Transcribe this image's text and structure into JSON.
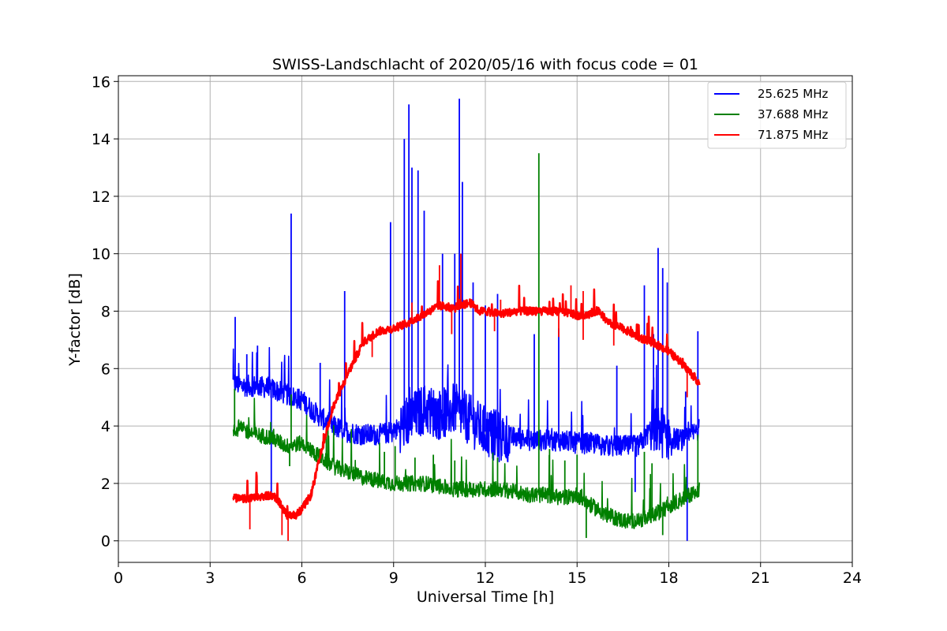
{
  "chart_data": {
    "type": "line",
    "title": "SWISS-Landschlacht of 2020/05/16 with focus code = 01",
    "xlabel": "Universal Time [h]",
    "ylabel": "Y-factor [dB]",
    "xlim": [
      0,
      24
    ],
    "ylim": [
      -0.75,
      16.2
    ],
    "xticks": [
      0,
      3,
      6,
      9,
      12,
      15,
      18,
      21,
      24
    ],
    "yticks": [
      0,
      2,
      4,
      6,
      8,
      10,
      12,
      14,
      16
    ],
    "grid": true,
    "legend_position": "top-right",
    "series": [
      {
        "name": "25.625 MHz",
        "color": "#0000ff",
        "x": [
          3.75,
          4.0,
          4.5,
          5.0,
          5.5,
          6.0,
          6.5,
          7.0,
          7.5,
          8.0,
          8.5,
          9.0,
          9.5,
          10.0,
          10.5,
          11.0,
          11.5,
          12.0,
          12.5,
          13.0,
          13.5,
          14.0,
          14.5,
          15.0,
          15.5,
          16.0,
          16.5,
          17.0,
          17.5,
          18.0,
          18.5,
          19.0
        ],
        "y": [
          5.5,
          5.4,
          5.4,
          5.3,
          5.1,
          4.9,
          4.4,
          4.0,
          3.8,
          3.7,
          3.7,
          3.8,
          4.2,
          4.6,
          4.4,
          4.6,
          4.2,
          3.8,
          3.6,
          3.6,
          3.5,
          3.5,
          3.5,
          3.4,
          3.4,
          3.3,
          3.3,
          3.3,
          4.0,
          3.6,
          3.5,
          3.9
        ],
        "spikes": [
          [
            3.82,
            7.8
          ],
          [
            4.2,
            6.5
          ],
          [
            4.55,
            6.8
          ],
          [
            5.65,
            11.4
          ],
          [
            6.6,
            6.2
          ],
          [
            7.4,
            8.7
          ],
          [
            8.9,
            11.1
          ],
          [
            9.35,
            14.0
          ],
          [
            9.5,
            15.2
          ],
          [
            9.6,
            13.0
          ],
          [
            9.8,
            12.9
          ],
          [
            10.0,
            11.5
          ],
          [
            10.6,
            10.0
          ],
          [
            11.0,
            10.0
          ],
          [
            11.15,
            15.4
          ],
          [
            11.25,
            12.5
          ],
          [
            11.6,
            9.0
          ],
          [
            12.0,
            8.2
          ],
          [
            12.4,
            8.6
          ],
          [
            13.6,
            7.2
          ],
          [
            14.4,
            7.4
          ],
          [
            16.3,
            6.1
          ],
          [
            17.2,
            8.9
          ],
          [
            17.5,
            7.2
          ],
          [
            17.65,
            10.2
          ],
          [
            17.8,
            9.5
          ],
          [
            17.95,
            9.0
          ],
          [
            18.55,
            5.2
          ],
          [
            18.95,
            7.3
          ]
        ],
        "dips": [
          [
            5.0,
            1.6
          ],
          [
            16.9,
            1.7
          ],
          [
            18.6,
            0.0
          ]
        ]
      },
      {
        "name": "37.688 MHz",
        "color": "#008000",
        "x": [
          3.75,
          4.0,
          4.5,
          5.0,
          5.5,
          6.0,
          6.5,
          7.0,
          7.5,
          8.0,
          8.5,
          9.0,
          9.5,
          10.0,
          10.5,
          11.0,
          11.5,
          12.0,
          12.5,
          13.0,
          13.5,
          14.0,
          14.5,
          15.0,
          15.5,
          16.0,
          16.5,
          17.0,
          17.5,
          18.0,
          18.5,
          19.0
        ],
        "y": [
          3.9,
          3.9,
          3.7,
          3.6,
          3.3,
          3.4,
          3.0,
          2.6,
          2.4,
          2.2,
          2.1,
          2.0,
          2.0,
          2.0,
          1.9,
          1.8,
          1.8,
          1.8,
          1.8,
          1.7,
          1.6,
          1.6,
          1.5,
          1.6,
          1.2,
          0.9,
          0.7,
          0.7,
          0.9,
          1.2,
          1.5,
          1.8
        ],
        "spikes": [
          [
            3.8,
            5.3
          ],
          [
            5.65,
            5.1
          ],
          [
            6.8,
            3.9
          ],
          [
            8.7,
            3.1
          ],
          [
            9.05,
            3.3
          ],
          [
            9.7,
            2.9
          ],
          [
            10.3,
            3.0
          ],
          [
            11.0,
            2.8
          ],
          [
            12.4,
            2.9
          ],
          [
            13.75,
            13.5
          ],
          [
            14.1,
            3.2
          ],
          [
            14.6,
            2.8
          ],
          [
            15.0,
            3.0
          ],
          [
            17.2,
            3.1
          ],
          [
            17.45,
            2.7
          ],
          [
            18.95,
            3.7
          ]
        ],
        "dips": [
          [
            5.6,
            2.6
          ],
          [
            15.3,
            0.1
          ],
          [
            17.8,
            0.2
          ]
        ]
      },
      {
        "name": "71.875 MHz",
        "color": "#ff0000",
        "x": [
          3.75,
          4.0,
          4.5,
          5.0,
          5.2,
          5.5,
          5.8,
          6.0,
          6.3,
          6.5,
          6.8,
          7.0,
          7.5,
          8.0,
          8.5,
          9.0,
          9.5,
          10.0,
          10.5,
          11.0,
          11.5,
          11.8,
          12.0,
          12.5,
          13.0,
          13.5,
          14.0,
          14.5,
          15.0,
          15.5,
          15.7,
          16.0,
          16.5,
          17.0,
          17.5,
          18.0,
          18.5,
          19.0
        ],
        "y": [
          1.5,
          1.45,
          1.5,
          1.6,
          1.45,
          0.9,
          0.9,
          1.1,
          1.6,
          2.5,
          3.8,
          4.6,
          5.8,
          6.9,
          7.3,
          7.4,
          7.6,
          7.9,
          8.2,
          8.1,
          8.3,
          8.0,
          8.0,
          7.9,
          8.0,
          8.0,
          8.0,
          8.0,
          7.85,
          7.9,
          8.05,
          7.6,
          7.4,
          7.1,
          6.9,
          6.6,
          6.1,
          5.5
        ],
        "spikes": [
          [
            9.6,
            8.3
          ],
          [
            10.5,
            9.6
          ],
          [
            11.2,
            10.0
          ],
          [
            12.5,
            8.4
          ],
          [
            14.8,
            8.9
          ],
          [
            15.2,
            8.7
          ]
        ],
        "dips": [
          [
            4.3,
            0.4
          ],
          [
            5.35,
            0.2
          ],
          [
            5.55,
            0.0
          ],
          [
            8.3,
            6.4
          ],
          [
            10.9,
            7.2
          ],
          [
            12.3,
            7.3
          ],
          [
            14.4,
            7.1
          ],
          [
            15.2,
            7.0
          ],
          [
            16.2,
            6.8
          ],
          [
            18.6,
            5.0
          ]
        ]
      }
    ]
  }
}
